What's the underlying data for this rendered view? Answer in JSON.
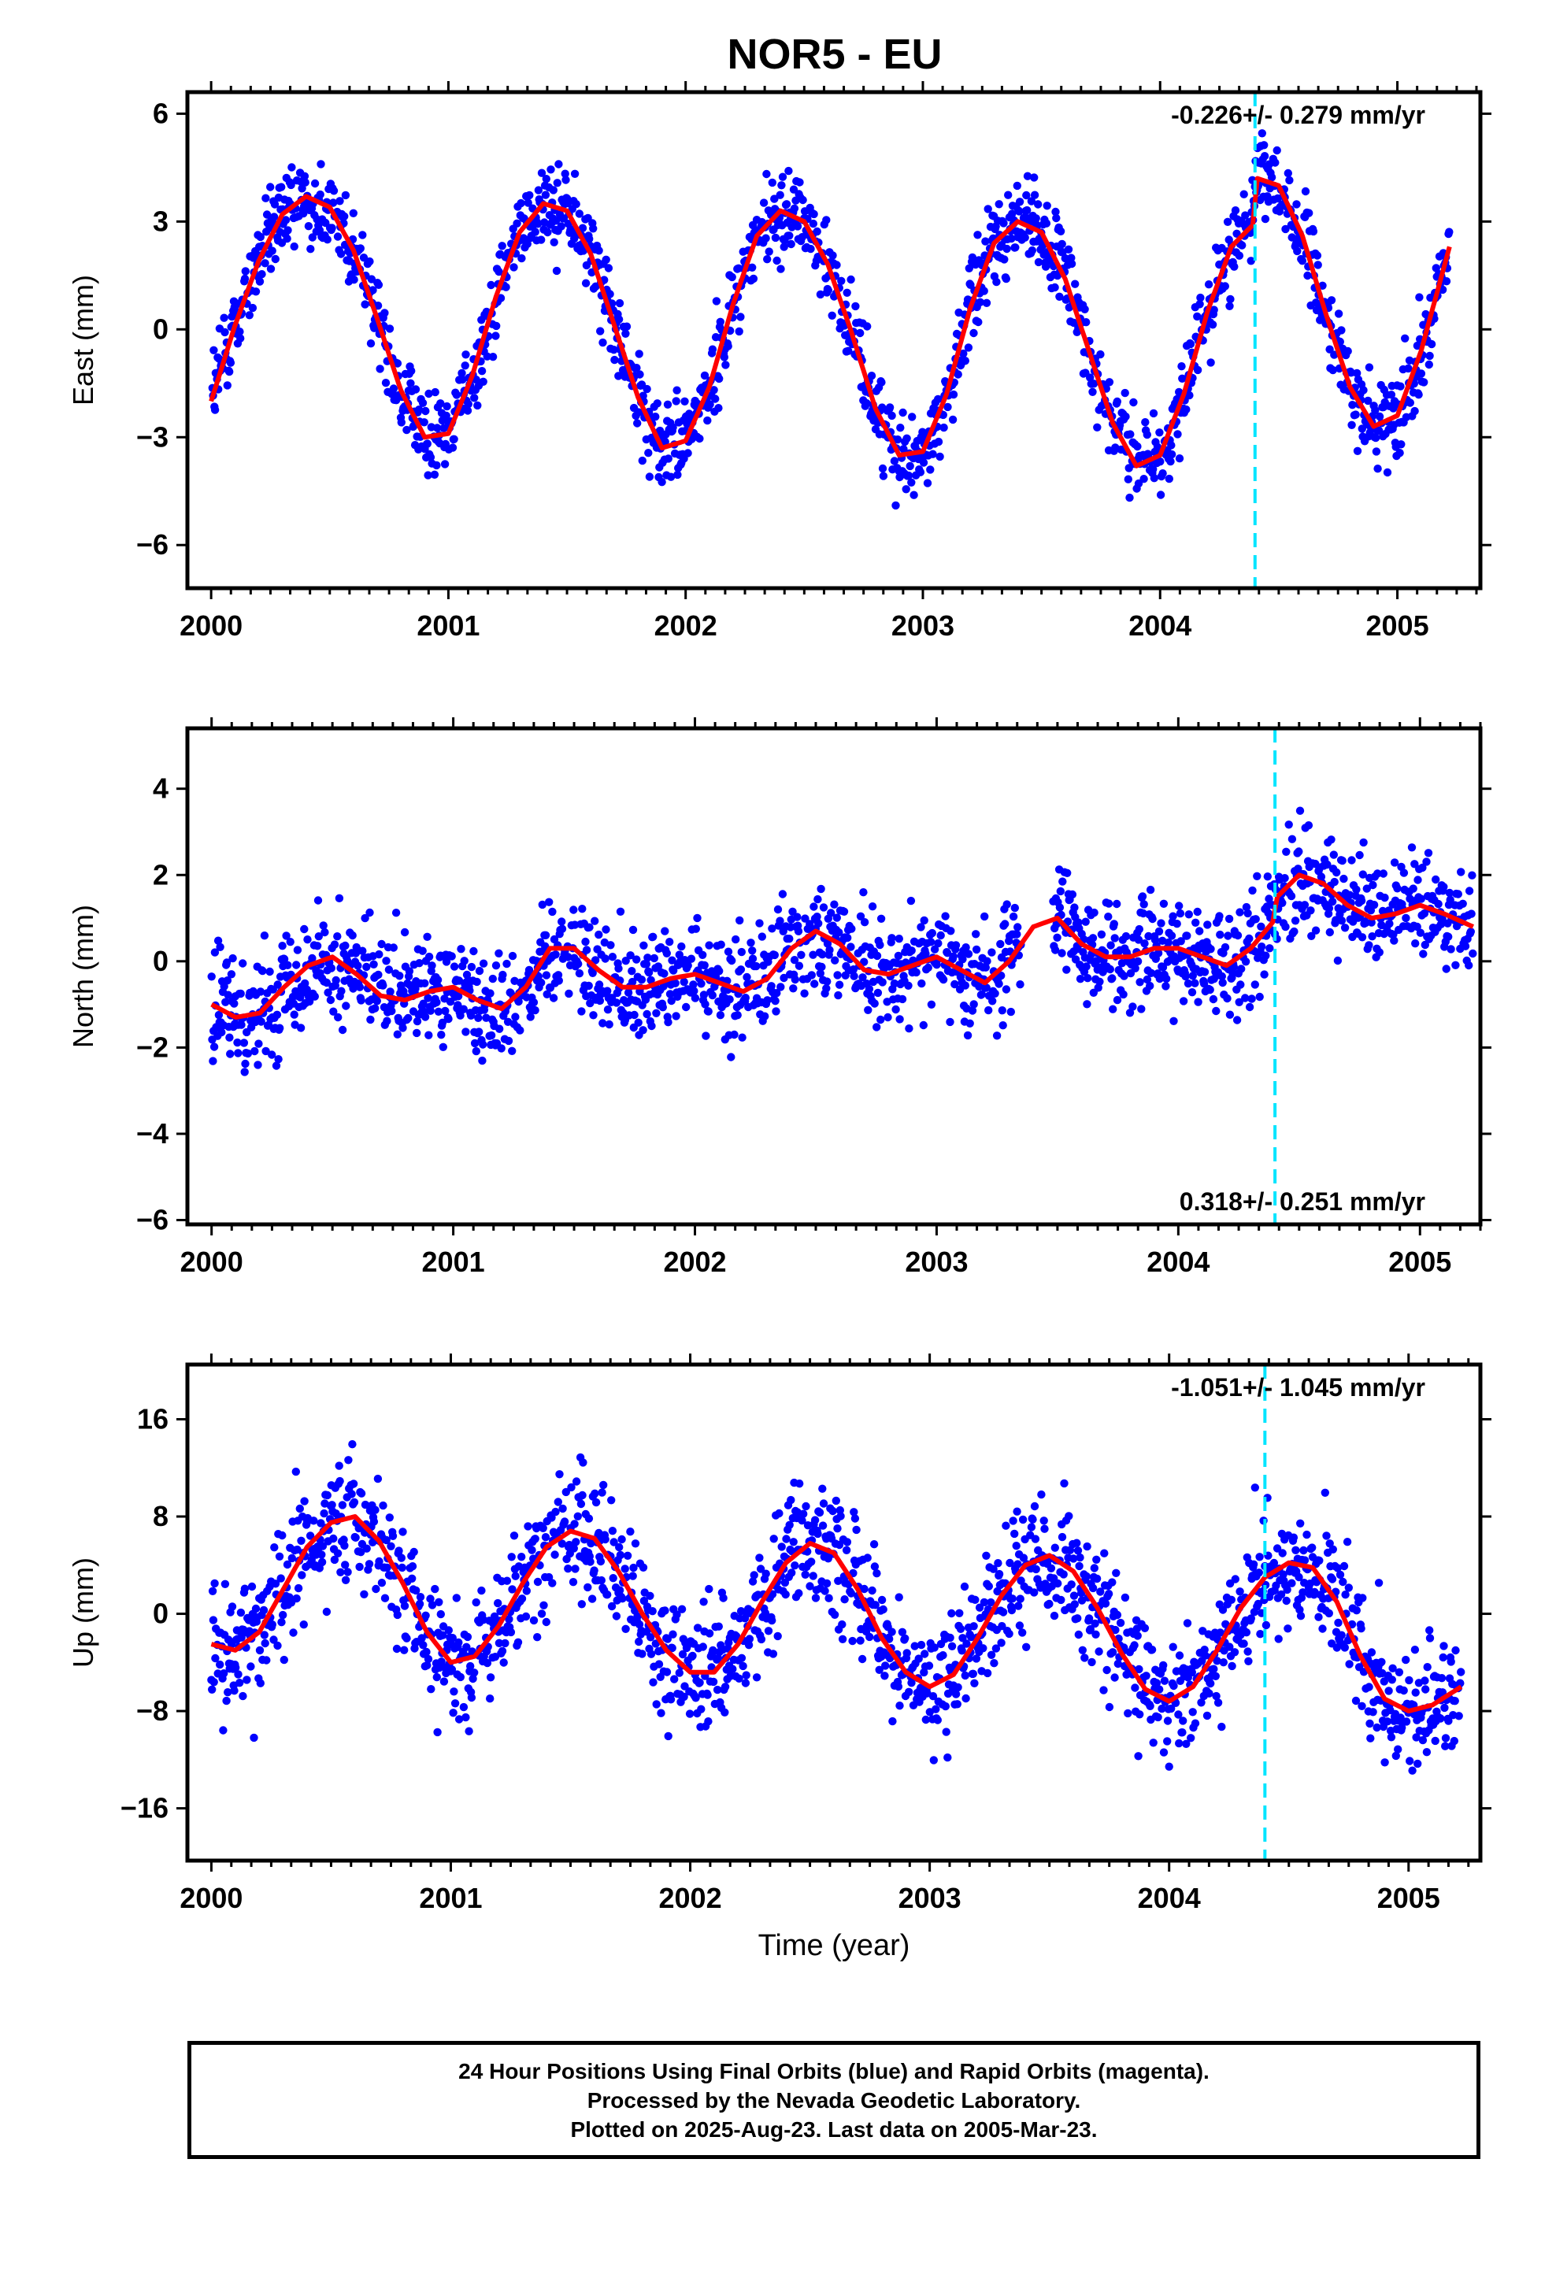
{
  "title": "NOR5 - EU",
  "colors": {
    "points": "#0000ff",
    "model": "#ff0000",
    "event_line": "#00e5ff",
    "axes": "#000000"
  },
  "footer": {
    "line1": "24 Hour Positions Using Final Orbits (blue) and Rapid Orbits (magenta).",
    "line2": "Processed by the Nevada Geodetic Laboratory.",
    "line3": "Plotted on 2025-Aug-23. Last data on 2005-Mar-23."
  },
  "chart_data": [
    {
      "type": "scatter",
      "name": "east",
      "ylabel": "East (mm)",
      "xlabel": "",
      "xlim": [
        1999.9,
        2005.35
      ],
      "ylim": [
        -7.2,
        6.6
      ],
      "yticks": [
        -6,
        -3,
        0,
        3,
        6
      ],
      "xticks": [
        2000,
        2001,
        2002,
        2003,
        2004,
        2005
      ],
      "annotation": "-0.226+/- 0.279 mm/yr",
      "annotation_position": "top-right",
      "event_x": 2004.4,
      "data_window": [
        2000.0,
        2005.22
      ],
      "model": {
        "x": [
          2000.0,
          2000.1,
          2000.2,
          2000.3,
          2000.4,
          2000.5,
          2000.6,
          2000.7,
          2000.8,
          2000.9,
          2001.0,
          2001.1,
          2001.2,
          2001.3,
          2001.4,
          2001.5,
          2001.6,
          2001.7,
          2001.8,
          2001.9,
          2002.0,
          2002.1,
          2002.2,
          2002.3,
          2002.4,
          2002.5,
          2002.6,
          2002.7,
          2002.8,
          2002.9,
          2003.0,
          2003.1,
          2003.2,
          2003.3,
          2003.4,
          2003.5,
          2003.6,
          2003.7,
          2003.8,
          2003.9,
          2004.0,
          2004.1,
          2004.2,
          2004.3,
          2004.39,
          2004.41,
          2004.5,
          2004.6,
          2004.7,
          2004.8,
          2004.9,
          2005.0,
          2005.1,
          2005.22
        ],
        "y": [
          -2.0,
          0.1,
          1.9,
          3.2,
          3.7,
          3.4,
          2.2,
          0.3,
          -1.7,
          -3.0,
          -2.9,
          -1.3,
          0.9,
          2.7,
          3.5,
          3.3,
          2.1,
          0.1,
          -1.9,
          -3.3,
          -3.1,
          -1.6,
          0.7,
          2.6,
          3.3,
          3.0,
          1.8,
          -0.1,
          -2.2,
          -3.5,
          -3.4,
          -1.8,
          0.6,
          2.4,
          3.0,
          2.7,
          1.4,
          -0.6,
          -2.6,
          -3.8,
          -3.5,
          -1.8,
          0.5,
          2.3,
          2.9,
          4.2,
          4.0,
          2.6,
          0.4,
          -1.6,
          -2.7,
          -2.4,
          -0.6,
          2.3
        ]
      },
      "noise": 1.0
    },
    {
      "type": "scatter",
      "name": "north",
      "ylabel": "North (mm)",
      "xlabel": "",
      "xlim": [
        1999.9,
        2005.25
      ],
      "ylim": [
        -6.1,
        5.4
      ],
      "yticks": [
        -6,
        -4,
        -2,
        0,
        2,
        4
      ],
      "xticks": [
        2000,
        2001,
        2002,
        2003,
        2004,
        2005
      ],
      "annotation": "0.318+/- 0.251 mm/yr",
      "annotation_position": "bottom-right",
      "event_x": 2004.4,
      "data_window": [
        2000.0,
        2005.22
      ],
      "gap": [
        2003.35,
        2003.48
      ],
      "model": {
        "x": [
          2000.0,
          2000.1,
          2000.2,
          2000.3,
          2000.4,
          2000.5,
          2000.6,
          2000.7,
          2000.8,
          2000.9,
          2001.0,
          2001.1,
          2001.2,
          2001.3,
          2001.4,
          2001.5,
          2001.6,
          2001.7,
          2001.8,
          2001.9,
          2002.0,
          2002.1,
          2002.2,
          2002.3,
          2002.4,
          2002.5,
          2002.6,
          2002.7,
          2002.8,
          2002.9,
          2003.0,
          2003.1,
          2003.2,
          2003.3,
          2003.4,
          2003.5,
          2003.6,
          2003.7,
          2003.8,
          2003.9,
          2004.0,
          2004.1,
          2004.2,
          2004.3,
          2004.39,
          2004.41,
          2004.5,
          2004.6,
          2004.7,
          2004.8,
          2004.9,
          2005.0,
          2005.1,
          2005.22
        ],
        "y": [
          -1.0,
          -1.3,
          -1.2,
          -0.6,
          -0.1,
          0.1,
          -0.3,
          -0.8,
          -0.9,
          -0.7,
          -0.6,
          -0.9,
          -1.1,
          -0.6,
          0.3,
          0.3,
          -0.2,
          -0.6,
          -0.6,
          -0.4,
          -0.3,
          -0.5,
          -0.7,
          -0.4,
          0.3,
          0.7,
          0.4,
          -0.2,
          -0.3,
          -0.1,
          0.1,
          -0.2,
          -0.5,
          0.0,
          0.8,
          1.0,
          0.4,
          0.1,
          0.1,
          0.3,
          0.3,
          0.1,
          -0.1,
          0.3,
          0.9,
          1.5,
          2.0,
          1.8,
          1.3,
          1.0,
          1.1,
          1.3,
          1.1,
          0.8
        ]
      },
      "noise": 1.0
    },
    {
      "type": "scatter",
      "name": "up",
      "ylabel": "Up (mm)",
      "xlabel": "Time (year)",
      "xlim": [
        1999.9,
        2005.3
      ],
      "ylim": [
        -20.3,
        20.5
      ],
      "yticks": [
        -16,
        -8,
        0,
        8,
        16
      ],
      "xticks": [
        2000,
        2001,
        2002,
        2003,
        2004,
        2005
      ],
      "annotation": "-1.051+/- 1.045 mm/yr",
      "annotation_position": "top-right",
      "event_x": 2004.4,
      "data_window": [
        2000.0,
        2005.22
      ],
      "model": {
        "x": [
          2000.0,
          2000.1,
          2000.2,
          2000.3,
          2000.4,
          2000.5,
          2000.6,
          2000.7,
          2000.8,
          2000.9,
          2001.0,
          2001.1,
          2001.2,
          2001.3,
          2001.4,
          2001.5,
          2001.6,
          2001.7,
          2001.8,
          2001.9,
          2002.0,
          2002.1,
          2002.2,
          2002.3,
          2002.4,
          2002.5,
          2002.6,
          2002.7,
          2002.8,
          2002.9,
          2003.0,
          2003.1,
          2003.2,
          2003.3,
          2003.4,
          2003.5,
          2003.6,
          2003.7,
          2003.8,
          2003.9,
          2004.0,
          2004.1,
          2004.2,
          2004.3,
          2004.4,
          2004.5,
          2004.6,
          2004.7,
          2004.8,
          2004.9,
          2005.0,
          2005.1,
          2005.22
        ],
        "y": [
          -2.5,
          -3.0,
          -1.5,
          2.0,
          5.5,
          7.5,
          8.0,
          6.0,
          2.5,
          -1.5,
          -4.0,
          -3.5,
          -1.0,
          2.5,
          5.5,
          6.8,
          6.2,
          3.5,
          0.0,
          -3.0,
          -4.8,
          -4.8,
          -2.5,
          1.0,
          4.2,
          5.8,
          5.0,
          2.0,
          -2.0,
          -4.8,
          -6.0,
          -5.0,
          -2.0,
          1.5,
          4.0,
          4.8,
          3.5,
          0.5,
          -3.2,
          -6.2,
          -7.2,
          -6.0,
          -3.0,
          0.5,
          3.0,
          4.2,
          3.8,
          1.0,
          -3.5,
          -7.0,
          -8.0,
          -7.5,
          -6.0
        ]
      },
      "noise": 4.2
    }
  ]
}
